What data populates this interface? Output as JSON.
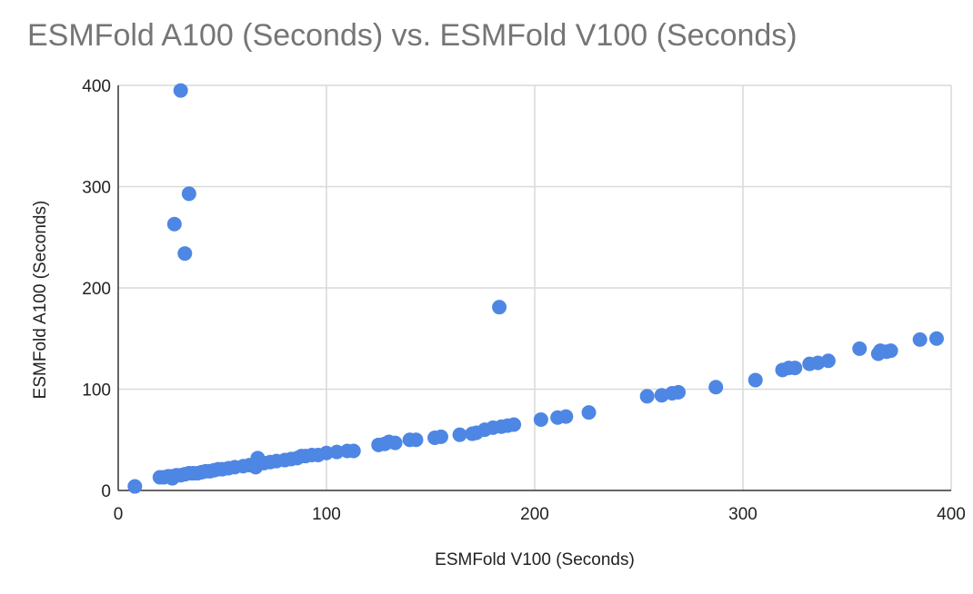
{
  "chart_data": {
    "type": "scatter",
    "title": "ESMFold A100 (Seconds) vs. ESMFold V100 (Seconds)",
    "xlabel": "ESMFold V100 (Seconds)",
    "ylabel": "ESMFold A100 (Seconds)",
    "xlim": [
      0,
      400
    ],
    "ylim": [
      0,
      400
    ],
    "xticks": [
      "0",
      "100",
      "200",
      "300",
      "400"
    ],
    "yticks": [
      "0",
      "100",
      "200",
      "300",
      "400"
    ],
    "grid": true,
    "legend": "none",
    "point_color": "#4e86e4",
    "series": [
      {
        "x": [
          8,
          20,
          22,
          24,
          26,
          28,
          30,
          32,
          34,
          36,
          38,
          40,
          42,
          44,
          46,
          48,
          50,
          53,
          56,
          60,
          63,
          66,
          67,
          70,
          73,
          76,
          80,
          83,
          86,
          88,
          90,
          93,
          96,
          100,
          105,
          110,
          113,
          125,
          128,
          130,
          133,
          140,
          143,
          152,
          155,
          164,
          170,
          172,
          176,
          180,
          184,
          187,
          190,
          203,
          211,
          215,
          226,
          254,
          261,
          266,
          269,
          287,
          306,
          319,
          322,
          325,
          332,
          336,
          341,
          356,
          365,
          366,
          369,
          371,
          385,
          393,
          26,
          30,
          27,
          34,
          32,
          183
        ],
        "y": [
          4,
          13,
          13,
          14,
          14,
          15,
          15,
          16,
          17,
          17,
          17,
          18,
          19,
          19,
          20,
          21,
          21,
          22,
          23,
          24,
          25,
          23,
          32,
          27,
          28,
          29,
          30,
          31,
          32,
          34,
          34,
          35,
          35,
          37,
          38,
          39,
          39,
          45,
          46,
          48,
          47,
          50,
          50,
          52,
          53,
          55,
          56,
          57,
          60,
          62,
          63,
          64,
          65,
          70,
          72,
          73,
          77,
          93,
          94,
          96,
          97,
          102,
          109,
          119,
          121,
          121,
          125,
          126,
          128,
          140,
          135,
          138,
          137,
          138,
          149,
          150,
          12,
          395,
          263,
          293,
          234,
          181
        ]
      }
    ]
  }
}
